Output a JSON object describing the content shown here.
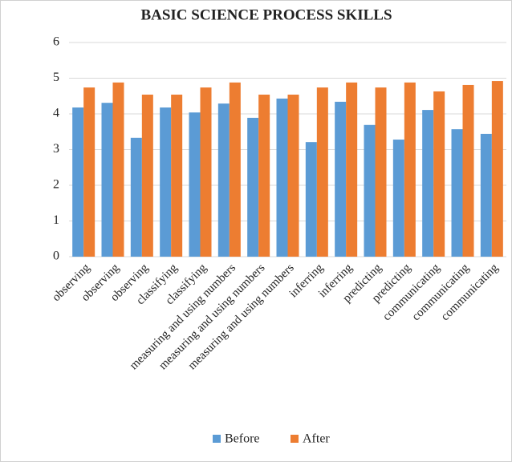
{
  "chart_data": {
    "type": "bar",
    "title": "BASIC SCIENCE PROCESS SKILLS",
    "categories": [
      "observing",
      "observing",
      "observing",
      "classifying",
      "classifying",
      "measuring and using numbers",
      "measuring and using numbers",
      "measuring and using numbers",
      "inferring",
      "inferring",
      "predicting",
      "predicting",
      "communicating",
      "communicating",
      "communicating"
    ],
    "series": [
      {
        "name": "Before",
        "color": "#5b9bd5",
        "values": [
          4.18,
          4.31,
          3.33,
          4.18,
          4.04,
          4.29,
          3.89,
          4.43,
          3.21,
          4.34,
          3.69,
          3.28,
          4.11,
          3.57,
          3.44
        ]
      },
      {
        "name": "After",
        "color": "#ed7d31",
        "values": [
          4.74,
          4.88,
          4.54,
          4.54,
          4.74,
          4.88,
          4.54,
          4.54,
          4.74,
          4.88,
          4.74,
          4.88,
          4.63,
          4.81,
          4.92
        ]
      }
    ],
    "ylim": [
      0,
      6
    ],
    "yticks": [
      0,
      1,
      2,
      3,
      4,
      5,
      6
    ],
    "grid": true,
    "legend": "bottom"
  }
}
